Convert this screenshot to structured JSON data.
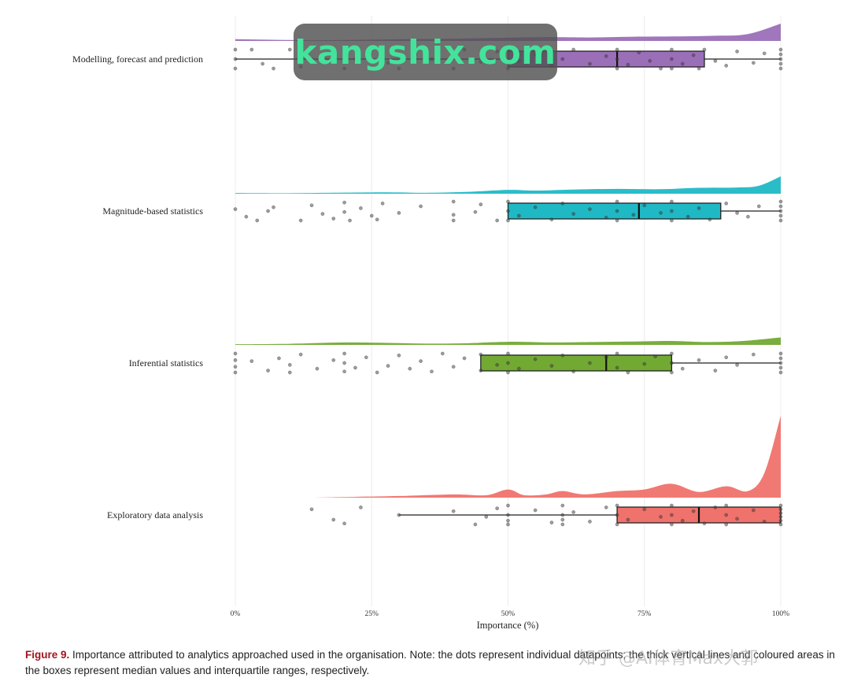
{
  "chart_data": {
    "type": "raincloud",
    "orientation": "horizontal",
    "xlabel": "Importance (%)",
    "xlim": [
      0,
      100
    ],
    "xticks": [
      0,
      25,
      50,
      75,
      100
    ],
    "xtick_labels": [
      "0%",
      "25%",
      "50%",
      "75%",
      "100%"
    ],
    "grid": "vertical",
    "categories": [
      {
        "name": "Modelling, forecast and prediction",
        "color": "#9b6fb8",
        "box": {
          "whisker_low": 0,
          "q1": 50,
          "median": 70,
          "q3": 86,
          "whisker_high": 100
        },
        "density": [
          [
            0,
            0.1
          ],
          [
            8,
            0.06
          ],
          [
            15,
            0.04
          ],
          [
            22,
            0.06
          ],
          [
            30,
            0.1
          ],
          [
            38,
            0.12
          ],
          [
            45,
            0.16
          ],
          [
            52,
            0.2
          ],
          [
            58,
            0.22
          ],
          [
            65,
            0.2
          ],
          [
            72,
            0.24
          ],
          [
            80,
            0.26
          ],
          [
            88,
            0.3
          ],
          [
            94,
            0.4
          ],
          [
            100,
            1.0
          ]
        ],
        "points": [
          [
            0,
            -1
          ],
          [
            0,
            0
          ],
          [
            0,
            1
          ],
          [
            3,
            -1
          ],
          [
            5,
            0.5
          ],
          [
            7,
            1
          ],
          [
            10,
            -1
          ],
          [
            12,
            0.8
          ],
          [
            14,
            0
          ],
          [
            18,
            -0.6
          ],
          [
            20,
            1
          ],
          [
            22,
            0
          ],
          [
            25,
            -1
          ],
          [
            28,
            0.4
          ],
          [
            30,
            1
          ],
          [
            33,
            -0.5
          ],
          [
            36,
            0
          ],
          [
            40,
            1
          ],
          [
            42,
            -1
          ],
          [
            45,
            0.3
          ],
          [
            48,
            -0.8
          ],
          [
            50,
            -1
          ],
          [
            50,
            1
          ],
          [
            52,
            0.2
          ],
          [
            55,
            -0.5
          ],
          [
            58,
            0.7
          ],
          [
            60,
            0
          ],
          [
            62,
            -1
          ],
          [
            65,
            0.5
          ],
          [
            68,
            -0.3
          ],
          [
            70,
            -1
          ],
          [
            70,
            0
          ],
          [
            70,
            1
          ],
          [
            72,
            0.6
          ],
          [
            74,
            -0.7
          ],
          [
            76,
            0.2
          ],
          [
            78,
            1
          ],
          [
            80,
            -1
          ],
          [
            80,
            0
          ],
          [
            80,
            1
          ],
          [
            82,
            0.5
          ],
          [
            84,
            -0.4
          ],
          [
            85,
            1
          ],
          [
            86,
            -1
          ],
          [
            88,
            0.2
          ],
          [
            90,
            0.7
          ],
          [
            92,
            -0.8
          ],
          [
            95,
            0.4
          ],
          [
            97,
            -0.6
          ],
          [
            100,
            -1
          ],
          [
            100,
            -0.5
          ],
          [
            100,
            0
          ],
          [
            100,
            0.5
          ],
          [
            100,
            1
          ]
        ]
      },
      {
        "name": "Magnitude-based statistics",
        "color": "#1fb9c5",
        "box": {
          "whisker_low": 50,
          "q1": 50,
          "median": 74,
          "q3": 89,
          "whisker_high": 100
        },
        "density": [
          [
            0,
            0.04
          ],
          [
            10,
            0.03
          ],
          [
            20,
            0.06
          ],
          [
            28,
            0.08
          ],
          [
            35,
            0.05
          ],
          [
            42,
            0.1
          ],
          [
            50,
            0.22
          ],
          [
            55,
            0.18
          ],
          [
            62,
            0.24
          ],
          [
            70,
            0.28
          ],
          [
            78,
            0.26
          ],
          [
            85,
            0.34
          ],
          [
            92,
            0.36
          ],
          [
            96,
            0.46
          ],
          [
            100,
            1.0
          ]
        ],
        "points": [
          [
            0,
            -0.2
          ],
          [
            2,
            0.6
          ],
          [
            4,
            1
          ],
          [
            6,
            0
          ],
          [
            7,
            -0.4
          ],
          [
            12,
            1
          ],
          [
            14,
            -0.6
          ],
          [
            16,
            0.3
          ],
          [
            18,
            0.8
          ],
          [
            20,
            -0.9
          ],
          [
            20,
            0.1
          ],
          [
            21,
            1
          ],
          [
            23,
            -0.3
          ],
          [
            25,
            0.5
          ],
          [
            26,
            0.9
          ],
          [
            27,
            -0.8
          ],
          [
            30,
            0.2
          ],
          [
            34,
            -0.5
          ],
          [
            40,
            0.4
          ],
          [
            40,
            -1
          ],
          [
            40,
            1
          ],
          [
            44,
            0.1
          ],
          [
            45,
            -0.7
          ],
          [
            48,
            1
          ],
          [
            50,
            -1
          ],
          [
            50,
            0
          ],
          [
            50,
            1
          ],
          [
            52,
            0.5
          ],
          [
            55,
            -0.4
          ],
          [
            58,
            0.9
          ],
          [
            60,
            -0.8
          ],
          [
            62,
            0.3
          ],
          [
            65,
            -0.2
          ],
          [
            68,
            0.7
          ],
          [
            70,
            -1
          ],
          [
            70,
            0
          ],
          [
            70,
            1
          ],
          [
            73,
            0.4
          ],
          [
            75,
            -0.6
          ],
          [
            78,
            0.2
          ],
          [
            80,
            -1
          ],
          [
            80,
            0
          ],
          [
            80,
            1
          ],
          [
            83,
            0.6
          ],
          [
            85,
            -0.3
          ],
          [
            87,
            0.9
          ],
          [
            90,
            -0.8
          ],
          [
            92,
            0.2
          ],
          [
            94,
            0.6
          ],
          [
            96,
            -0.5
          ],
          [
            100,
            -1
          ],
          [
            100,
            -0.5
          ],
          [
            100,
            0
          ],
          [
            100,
            0.5
          ],
          [
            100,
            1
          ]
        ]
      },
      {
        "name": "Inferential statistics",
        "color": "#72a933",
        "box": {
          "whisker_low": 45,
          "q1": 45,
          "median": 68,
          "q3": 80,
          "whisker_high": 100
        },
        "density": [
          [
            0,
            0.06
          ],
          [
            10,
            0.1
          ],
          [
            20,
            0.22
          ],
          [
            28,
            0.18
          ],
          [
            35,
            0.12
          ],
          [
            42,
            0.14
          ],
          [
            50,
            0.28
          ],
          [
            58,
            0.22
          ],
          [
            65,
            0.26
          ],
          [
            72,
            0.3
          ],
          [
            80,
            0.36
          ],
          [
            86,
            0.26
          ],
          [
            92,
            0.32
          ],
          [
            96,
            0.48
          ],
          [
            100,
            0.68
          ]
        ],
        "points": [
          [
            0,
            -1
          ],
          [
            0,
            -0.3
          ],
          [
            0,
            0.4
          ],
          [
            0,
            1
          ],
          [
            3,
            -0.2
          ],
          [
            6,
            0.8
          ],
          [
            8,
            -0.5
          ],
          [
            10,
            0.2
          ],
          [
            10,
            1
          ],
          [
            12,
            -0.9
          ],
          [
            15,
            0.6
          ],
          [
            18,
            -0.3
          ],
          [
            20,
            0.9
          ],
          [
            20,
            -1
          ],
          [
            20,
            0
          ],
          [
            22,
            0.5
          ],
          [
            24,
            -0.6
          ],
          [
            26,
            1
          ],
          [
            28,
            0.3
          ],
          [
            30,
            -0.8
          ],
          [
            32,
            0.6
          ],
          [
            34,
            -0.2
          ],
          [
            36,
            0.9
          ],
          [
            38,
            -1
          ],
          [
            40,
            0.4
          ],
          [
            42,
            -0.5
          ],
          [
            45,
            0.8
          ],
          [
            45,
            -0.9
          ],
          [
            48,
            0.2
          ],
          [
            50,
            -1
          ],
          [
            50,
            0
          ],
          [
            50,
            1
          ],
          [
            52,
            0.6
          ],
          [
            55,
            -0.4
          ],
          [
            58,
            0.3
          ],
          [
            60,
            -0.8
          ],
          [
            62,
            0.9
          ],
          [
            65,
            0
          ],
          [
            68,
            -0.6
          ],
          [
            70,
            0.5
          ],
          [
            70,
            -1
          ],
          [
            72,
            1
          ],
          [
            75,
            0.1
          ],
          [
            77,
            -0.7
          ],
          [
            80,
            -1
          ],
          [
            80,
            0
          ],
          [
            80,
            1
          ],
          [
            82,
            0.6
          ],
          [
            85,
            -0.3
          ],
          [
            88,
            0.8
          ],
          [
            90,
            -0.6
          ],
          [
            92,
            0.2
          ],
          [
            95,
            -0.9
          ],
          [
            100,
            -1
          ],
          [
            100,
            -0.5
          ],
          [
            100,
            0
          ],
          [
            100,
            0.5
          ],
          [
            100,
            1
          ]
        ]
      },
      {
        "name": "Exploratory data analysis",
        "color": "#f0726c",
        "box": {
          "whisker_low": 30,
          "q1": 70,
          "median": 85,
          "q3": 100,
          "whisker_high": 100
        },
        "density": [
          [
            14,
            0.0
          ],
          [
            22,
            0.01
          ],
          [
            30,
            0.02
          ],
          [
            40,
            0.04
          ],
          [
            46,
            0.03
          ],
          [
            50,
            0.1
          ],
          [
            53,
            0.03
          ],
          [
            57,
            0.04
          ],
          [
            60,
            0.08
          ],
          [
            64,
            0.04
          ],
          [
            70,
            0.08
          ],
          [
            75,
            0.1
          ],
          [
            80,
            0.17
          ],
          [
            85,
            0.07
          ],
          [
            90,
            0.14
          ],
          [
            94,
            0.08
          ],
          [
            97,
            0.3
          ],
          [
            100,
            1.0
          ]
        ],
        "points": [
          [
            14,
            -0.6
          ],
          [
            18,
            0.5
          ],
          [
            20,
            0.9
          ],
          [
            23,
            -0.8
          ],
          [
            30,
            0
          ],
          [
            40,
            -0.4
          ],
          [
            44,
            1
          ],
          [
            46,
            0.2
          ],
          [
            48,
            -0.7
          ],
          [
            50,
            -1
          ],
          [
            50,
            0
          ],
          [
            50,
            0.6
          ],
          [
            50,
            1
          ],
          [
            55,
            -0.5
          ],
          [
            58,
            0.8
          ],
          [
            60,
            -1
          ],
          [
            60,
            0
          ],
          [
            60,
            0.5
          ],
          [
            60,
            1
          ],
          [
            62,
            -0.3
          ],
          [
            65,
            0.7
          ],
          [
            68,
            -0.8
          ],
          [
            70,
            -1
          ],
          [
            70,
            0
          ],
          [
            70,
            1
          ],
          [
            72,
            0.5
          ],
          [
            75,
            -0.6
          ],
          [
            78,
            0.2
          ],
          [
            80,
            -1
          ],
          [
            80,
            0
          ],
          [
            80,
            1
          ],
          [
            82,
            0.6
          ],
          [
            84,
            -0.4
          ],
          [
            86,
            0.9
          ],
          [
            88,
            -0.8
          ],
          [
            90,
            -1
          ],
          [
            90,
            0
          ],
          [
            90,
            1
          ],
          [
            92,
            0.4
          ],
          [
            95,
            -0.5
          ],
          [
            97,
            0.7
          ],
          [
            100,
            -1
          ],
          [
            100,
            -0.6
          ],
          [
            100,
            -0.2
          ],
          [
            100,
            0.2
          ],
          [
            100,
            0.6
          ],
          [
            100,
            1
          ]
        ]
      }
    ]
  },
  "caption": {
    "label": "Figure 9.",
    "text": " Importance attributed to analytics approached used in the organisation. Note: the dots represent individual datapoints; the thick vertical lines and coloured areas in the boxes represent median values and interquartile ranges, respectively."
  },
  "watermark": {
    "text": "kangshix.com",
    "overlay_text": "知乎 @AI体育Max大郭"
  }
}
